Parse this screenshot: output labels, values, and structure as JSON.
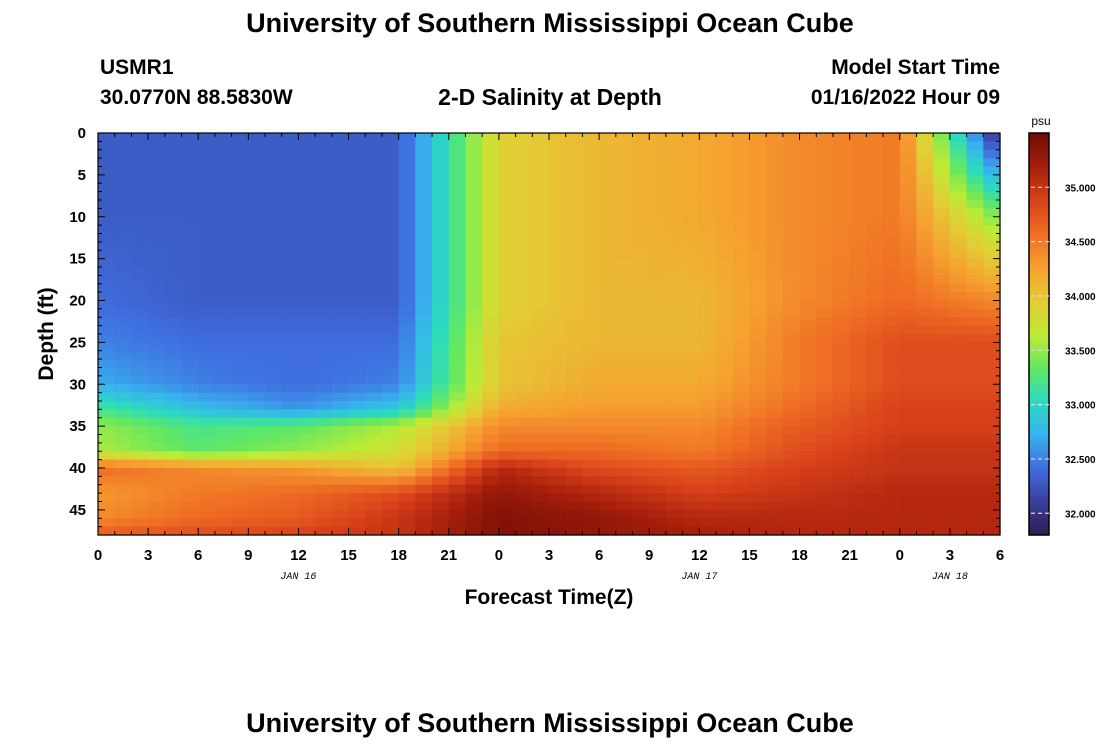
{
  "page": {
    "title": "University of Southern Mississippi Ocean Cube",
    "footer_title": "University of Southern Mississippi Ocean Cube",
    "station_id": "USMR1",
    "coordinates": "30.0770N  88.5830W",
    "subtitle": "2-D Salinity at Depth",
    "model_start_label": "Model Start Time",
    "model_start_value": "01/16/2022 Hour 09"
  },
  "chart_data": {
    "type": "heatmap",
    "title": "2-D Salinity at Depth",
    "xlabel": "Forecast Time(Z)",
    "ylabel": "Depth (ft)",
    "x_ticks": [
      "0",
      "3",
      "6",
      "9",
      "12",
      "15",
      "18",
      "21",
      "0",
      "3",
      "6",
      "9",
      "12",
      "15",
      "18",
      "21",
      "0",
      "3",
      "6"
    ],
    "x_range_hours": [
      0,
      54
    ],
    "date_labels": [
      {
        "label": "JAN 16",
        "at_hour": 12
      },
      {
        "label": "JAN 17",
        "at_hour": 36
      },
      {
        "label": "JAN 18",
        "at_hour": 51
      }
    ],
    "y_ticks": [
      0,
      5,
      10,
      15,
      20,
      25,
      30,
      35,
      40,
      45
    ],
    "ylim": [
      0,
      48
    ],
    "y_inverted": true,
    "colorbar": {
      "unit": "psu",
      "range": [
        31.8,
        35.5
      ],
      "ticks": [
        "32.000",
        "32.500",
        "33.000",
        "33.500",
        "34.000",
        "34.500",
        "35.000"
      ],
      "colormap": [
        "#2e1e4e",
        "#3a3f9c",
        "#3f6fe0",
        "#38b3ee",
        "#2adcbf",
        "#64e860",
        "#bfeb35",
        "#e4cb35",
        "#f6a030",
        "#ef6d24",
        "#d8411a",
        "#a61e0b",
        "#6e0c04"
      ]
    },
    "time_step_hours": 1,
    "depth_step_ft": 1,
    "salinity_psu": {
      "time_hours": [
        0,
        6,
        12,
        18,
        24,
        30,
        36,
        42,
        48,
        54
      ],
      "depth_ft": [
        0,
        10,
        20,
        25,
        30,
        33,
        35,
        38,
        40,
        43,
        46,
        48
      ],
      "values": [
        [
          32.3,
          32.3,
          32.4,
          32.5,
          32.7,
          33.2,
          33.5,
          33.6,
          34.6,
          34.3,
          34.4,
          34.7
        ],
        [
          32.3,
          32.3,
          32.3,
          32.4,
          32.5,
          32.8,
          33.2,
          33.3,
          34.4,
          34.5,
          34.6,
          34.8
        ],
        [
          32.3,
          32.3,
          32.3,
          32.4,
          32.4,
          32.6,
          33.3,
          33.5,
          34.3,
          34.6,
          34.7,
          34.9
        ],
        [
          32.3,
          32.3,
          32.3,
          32.4,
          32.5,
          32.9,
          33.6,
          33.8,
          34.0,
          34.8,
          35.0,
          35.0
        ],
        [
          33.9,
          33.9,
          33.9,
          34.0,
          34.0,
          34.2,
          34.4,
          34.6,
          35.1,
          35.3,
          35.4,
          35.4
        ],
        [
          34.1,
          34.1,
          34.1,
          34.1,
          34.2,
          34.3,
          34.4,
          34.6,
          34.8,
          35.1,
          35.3,
          35.3
        ],
        [
          34.2,
          34.2,
          34.1,
          34.1,
          34.2,
          34.3,
          34.4,
          34.5,
          34.7,
          34.9,
          35.1,
          35.2
        ],
        [
          34.4,
          34.4,
          34.4,
          34.5,
          34.5,
          34.6,
          34.7,
          34.8,
          34.9,
          35.0,
          35.1,
          35.1
        ],
        [
          34.5,
          34.5,
          34.6,
          34.8,
          34.8,
          34.9,
          34.9,
          35.0,
          35.0,
          35.1,
          35.1,
          35.1
        ],
        [
          31.9,
          33.4,
          34.4,
          34.8,
          34.8,
          34.9,
          34.9,
          35.0,
          35.0,
          35.1,
          35.1,
          35.1
        ]
      ]
    }
  }
}
